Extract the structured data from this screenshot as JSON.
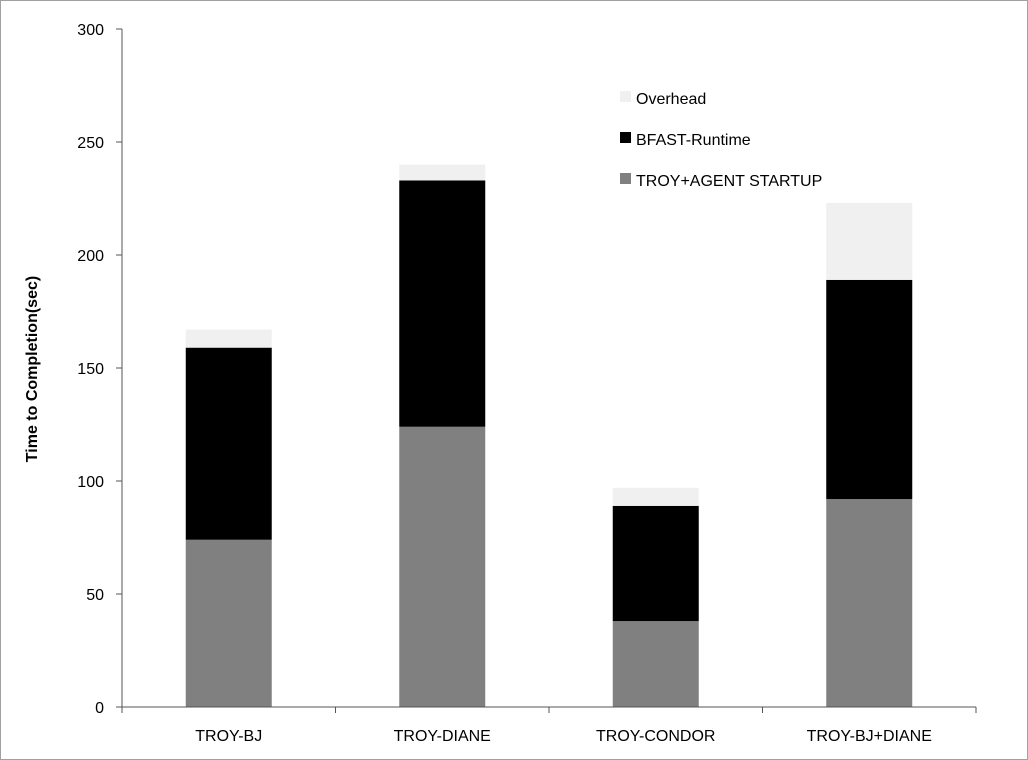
{
  "chart_data": {
    "type": "bar",
    "stacked": true,
    "title": "",
    "xlabel": "",
    "ylabel": "Time to Completion(sec)",
    "ylim": [
      0,
      300
    ],
    "yticks": [
      0,
      50,
      100,
      150,
      200,
      250,
      300
    ],
    "grid": false,
    "legend_position": "top-right",
    "categories": [
      "TROY-BJ",
      "TROY-DIANE",
      "TROY-CONDOR",
      "TROY-BJ+DIANE"
    ],
    "series": [
      {
        "name": "TROY+AGENT STARTUP",
        "color": "#808080",
        "values": [
          74,
          124,
          38,
          92
        ]
      },
      {
        "name": "BFAST-Runtime",
        "color": "#000000",
        "values": [
          85,
          109,
          51,
          97
        ]
      },
      {
        "name": "Overhead",
        "color": "#f0f0f0",
        "values": [
          8,
          7,
          8,
          34
        ]
      }
    ],
    "legend_order": [
      "Overhead",
      "BFAST-Runtime",
      "TROY+AGENT STARTUP"
    ]
  }
}
